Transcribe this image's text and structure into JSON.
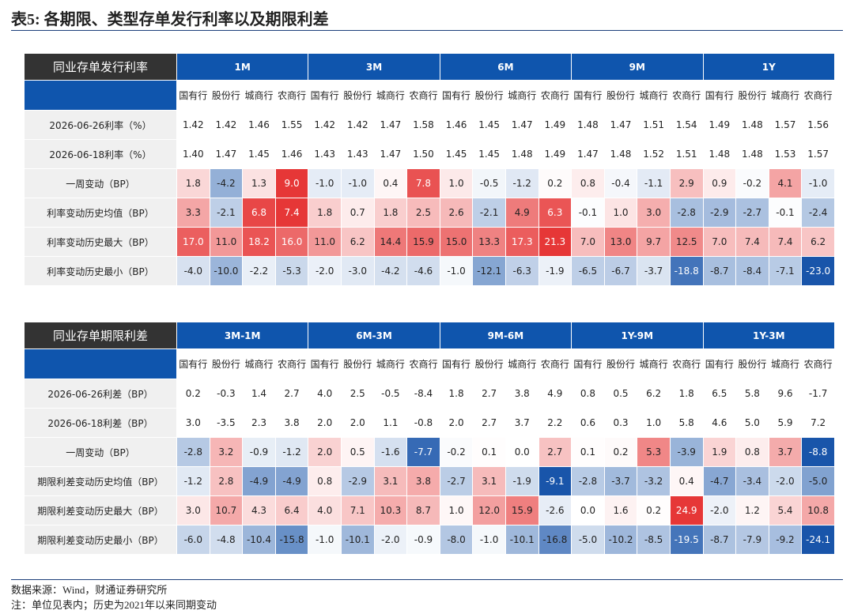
{
  "header": {
    "title": "表5: 各期限、类型存单发行利率以及期限利差"
  },
  "tables": [
    {
      "label": "同业存单发行利率",
      "groups": [
        "1M",
        "3M",
        "6M",
        "9M",
        "1Y"
      ],
      "subheaders": [
        "国有行",
        "股份行",
        "城商行",
        "农商行"
      ],
      "rows": [
        {
          "label": "2026-06-26利率（%）",
          "cells": [
            "1.42",
            "1.42",
            "1.46",
            "1.55",
            "1.42",
            "1.42",
            "1.47",
            "1.58",
            "1.46",
            "1.45",
            "1.47",
            "1.49",
            "1.48",
            "1.47",
            "1.51",
            "1.54",
            "1.49",
            "1.48",
            "1.57",
            "1.56"
          ]
        },
        {
          "label": "2026-06-18利率（%）",
          "cells": [
            "1.40",
            "1.47",
            "1.45",
            "1.46",
            "1.43",
            "1.43",
            "1.47",
            "1.50",
            "1.45",
            "1.45",
            "1.48",
            "1.49",
            "1.47",
            "1.48",
            "1.52",
            "1.51",
            "1.48",
            "1.48",
            "1.53",
            "1.57"
          ]
        },
        {
          "label": "一周变动（BP）",
          "cells": [
            "1.8",
            "-4.2",
            "1.3",
            "9.0",
            "-1.0",
            "-1.0",
            "0.4",
            "7.8",
            "1.0",
            "-0.5",
            "-1.2",
            "0.2",
            "0.8",
            "-0.4",
            "-1.1",
            "2.9",
            "0.9",
            "-0.2",
            "4.1",
            "-1.0"
          ]
        },
        {
          "label": "利率变动历史均值（BP）",
          "cells": [
            "3.3",
            "-2.1",
            "6.8",
            "7.4",
            "1.8",
            "0.7",
            "1.8",
            "2.5",
            "2.6",
            "-2.1",
            "4.9",
            "6.3",
            "-0.1",
            "1.0",
            "3.0",
            "-2.8",
            "-2.9",
            "-2.7",
            "-0.1",
            "-2.4"
          ]
        },
        {
          "label": "利率变动历史最大（BP）",
          "cells": [
            "17.0",
            "11.0",
            "18.2",
            "16.0",
            "11.0",
            "6.2",
            "14.4",
            "15.9",
            "15.0",
            "13.3",
            "17.3",
            "21.3",
            "7.0",
            "13.0",
            "9.7",
            "12.5",
            "7.0",
            "7.4",
            "7.4",
            "6.2"
          ]
        },
        {
          "label": "利率变动历史最小（BP）",
          "cells": [
            "-4.0",
            "-10.0",
            "-2.2",
            "-5.3",
            "-2.0",
            "-3.0",
            "-4.2",
            "-4.6",
            "-1.0",
            "-12.1",
            "-6.3",
            "-1.9",
            "-6.5",
            "-6.7",
            "-3.7",
            "-18.8",
            "-8.7",
            "-8.4",
            "-7.1",
            "-23.0"
          ]
        }
      ]
    },
    {
      "label": "同业存单期限利差",
      "groups": [
        "3M-1M",
        "6M-3M",
        "9M-6M",
        "1Y-9M",
        "1Y-3M"
      ],
      "subheaders": [
        "国有行",
        "股份行",
        "城商行",
        "农商行"
      ],
      "rows": [
        {
          "label": "2026-06-26利差（BP）",
          "cells": [
            "0.2",
            "-0.3",
            "1.4",
            "2.7",
            "4.0",
            "2.5",
            "-0.5",
            "-8.4",
            "1.8",
            "2.7",
            "3.8",
            "4.9",
            "0.8",
            "0.5",
            "6.2",
            "1.8",
            "6.5",
            "5.8",
            "9.6",
            "-1.7"
          ]
        },
        {
          "label": "2026-06-18利差（BP）",
          "cells": [
            "3.0",
            "-3.5",
            "2.3",
            "3.8",
            "2.0",
            "2.0",
            "1.1",
            "-0.8",
            "2.0",
            "2.7",
            "3.7",
            "2.2",
            "0.6",
            "0.3",
            "1.0",
            "5.8",
            "4.6",
            "5.0",
            "5.9",
            "7.2"
          ]
        },
        {
          "label": "一周变动（BP）",
          "cells": [
            "-2.8",
            "3.2",
            "-0.9",
            "-1.2",
            "2.0",
            "0.5",
            "-1.6",
            "-7.7",
            "-0.2",
            "0.1",
            "0.0",
            "2.7",
            "0.1",
            "0.2",
            "5.3",
            "-3.9",
            "1.9",
            "0.8",
            "3.7",
            "-8.8"
          ]
        },
        {
          "label": "期限利差变动历史均值（BP）",
          "cells": [
            "-1.2",
            "2.8",
            "-4.9",
            "-4.9",
            "0.8",
            "-2.9",
            "3.1",
            "3.8",
            "-2.7",
            "3.1",
            "-1.9",
            "-9.1",
            "-2.8",
            "-3.7",
            "-3.2",
            "0.4",
            "-4.7",
            "-3.4",
            "-2.0",
            "-5.0"
          ]
        },
        {
          "label": "期限利差变动历史最大（BP）",
          "cells": [
            "3.0",
            "10.7",
            "4.3",
            "6.4",
            "4.0",
            "7.1",
            "10.3",
            "8.7",
            "1.0",
            "12.0",
            "15.9",
            "-2.6",
            "0.0",
            "1.6",
            "0.2",
            "24.9",
            "-2.0",
            "1.2",
            "5.4",
            "10.8"
          ]
        },
        {
          "label": "期限利差变动历史最小（BP）",
          "cells": [
            "-6.0",
            "-4.8",
            "-10.4",
            "-15.8",
            "-1.0",
            "-10.1",
            "-2.0",
            "-0.9",
            "-8.0",
            "-1.0",
            "-10.1",
            "-16.8",
            "-5.0",
            "-10.2",
            "-8.5",
            "-19.5",
            "-8.7",
            "-7.9",
            "-9.2",
            "-24.1"
          ]
        }
      ]
    }
  ],
  "footer": {
    "source": "数据来源：Wind，财通证券研究所",
    "note": "注：单位见表内；历史为2021年以来同期变动"
  }
}
